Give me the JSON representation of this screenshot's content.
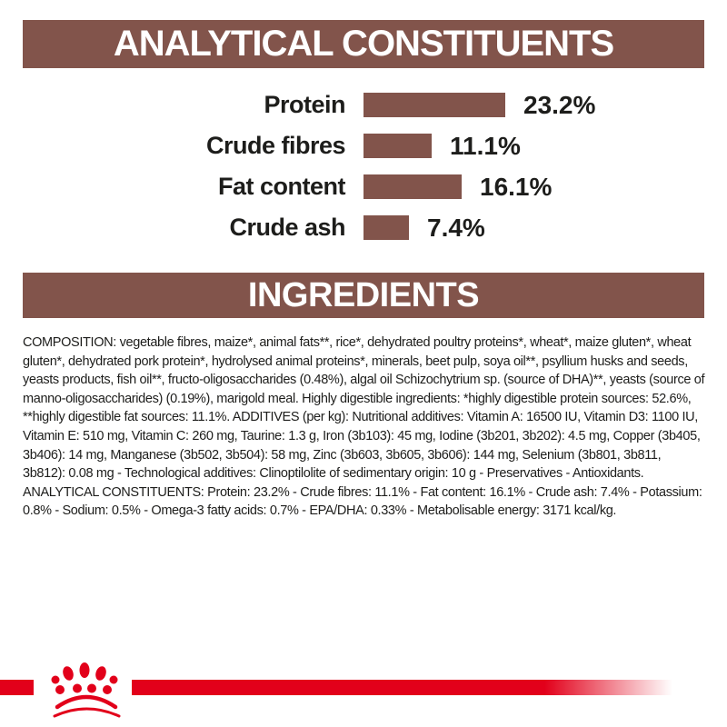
{
  "colors": {
    "brown": "#82544B",
    "red": "#E2001A",
    "text": "#1D1D1B",
    "background": "#FFFFFF"
  },
  "analytical_section": {
    "title": "ANALYTICAL CONSTITUENTS"
  },
  "chart_data": {
    "type": "bar",
    "orientation": "horizontal",
    "categories": [
      "Protein",
      "Crude fibres",
      "Fat content",
      "Crude ash"
    ],
    "values": [
      23.2,
      11.1,
      16.1,
      7.4
    ],
    "value_labels": [
      "23.2%",
      "11.1%",
      "16.1%",
      "7.4%"
    ],
    "unit": "%",
    "bar_color": "#82544B",
    "xlim": [
      0,
      30
    ],
    "grid": false,
    "legend": false,
    "title": "ANALYTICAL CONSTITUENTS"
  },
  "ingredients_section": {
    "title": "INGREDIENTS",
    "composition_text": "COMPOSITION: vegetable fibres, maize*, animal fats**, rice*, dehydrated poultry proteins*, wheat*, maize gluten*, wheat gluten*, dehydrated pork protein*, hydrolysed animal proteins*, minerals, beet pulp, soya oil**, psyllium husks and seeds, yeasts products, fish oil**, fructo-oligosaccharides (0.48%), algal oil Schizochytrium sp. (source of DHA)**, yeasts (source of manno-oligosaccharides) (0.19%), marigold meal. Highly digestible ingredients: *highly digestible protein sources: 52.6%, **highly digestible fat sources: 11.1%. ADDITIVES (per kg): Nutritional additives: Vitamin A: 16500 IU, Vitamin D3: 1100 IU, Vitamin E: 510 mg, Vitamin C: 260 mg, Taurine: 1.3 g, Iron (3b103): 45 mg, Iodine (3b201, 3b202): 4.5 mg, Copper (3b405, 3b406): 14 mg, Manganese (3b502, 3b504): 58 mg, Zinc (3b603, 3b605, 3b606): 144 mg, Selenium (3b801, 3b811, 3b812): 0.08 mg - Technological additives: Clinoptilolite of sedimentary origin: 10 g - Preservatives - Antioxidants. ANALYTICAL CONSTITUENTS: Protein: 23.2% - Crude fibres: 11.1% - Fat content: 16.1% - Crude ash: 7.4% - Potassium: 0.8% - Sodium: 0.5% - Omega-3 fatty acids: 0.7% - EPA/DHA: 0.33% - Metabolisable energy: 3171 kcal/kg."
  },
  "footer": {
    "logo": "royal-canin-crown-paw-logo"
  }
}
